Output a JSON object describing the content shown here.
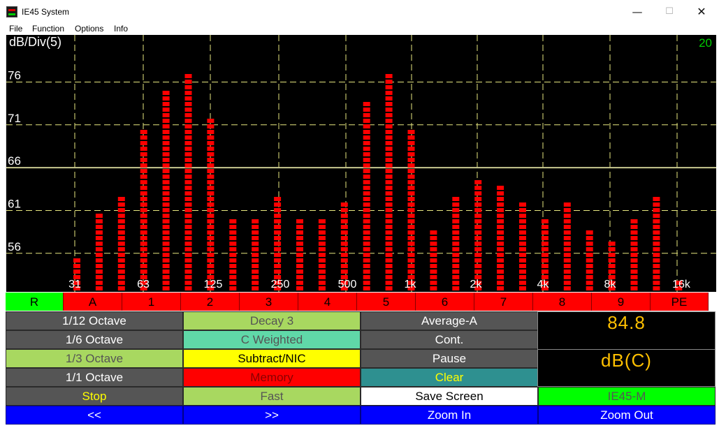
{
  "window": {
    "title": "IE45 System",
    "controls": {
      "minimize": "—",
      "maximize": "☐",
      "close": "✕"
    }
  },
  "menu": [
    {
      "label": "File"
    },
    {
      "label": "Function"
    },
    {
      "label": "Options"
    },
    {
      "label": "Info"
    }
  ],
  "chart_data": {
    "type": "bar",
    "ylabel": "dB/Div(5)",
    "range_indicator": "20",
    "ylim": [
      51.5,
      81.5
    ],
    "y_ticks": [
      56,
      61,
      66,
      71,
      76
    ],
    "reference_line": 66,
    "x_tick_labels": [
      "31",
      "63",
      "125",
      "250",
      "500",
      "1k",
      "2k",
      "4k",
      "8k",
      "16k"
    ],
    "values": [
      56,
      61,
      63,
      71,
      75,
      77,
      72,
      60,
      60,
      63,
      60,
      60,
      62,
      74,
      77,
      71,
      59,
      63,
      65,
      64,
      62,
      60,
      62,
      59,
      58,
      60,
      63,
      53,
      50
    ],
    "colors": {
      "bar": "#ff0000",
      "grid": "#e8e880",
      "reference_line": "#c8c890",
      "background": "#000000",
      "range_text": "#00cc00"
    }
  },
  "selector": {
    "buttons": [
      {
        "label": "R",
        "active": true
      },
      {
        "label": "A"
      },
      {
        "label": "1"
      },
      {
        "label": "2"
      },
      {
        "label": "3"
      },
      {
        "label": "4"
      },
      {
        "label": "5"
      },
      {
        "label": "6"
      },
      {
        "label": "7"
      },
      {
        "label": "8"
      },
      {
        "label": "9"
      },
      {
        "label": "PE"
      }
    ]
  },
  "controls": {
    "col1": [
      "1/12 Octave",
      "1/6 Octave",
      "1/3 Octave",
      "1/1 Octave",
      "Stop"
    ],
    "col2": [
      "Decay 3",
      "C Weighted",
      "Subtract/NIC",
      "Memory",
      "Fast"
    ],
    "col3": [
      "Average-A",
      "Cont.",
      "Pause",
      "Clear",
      "Save Screen"
    ],
    "col4_button": "IE45-M"
  },
  "readout": {
    "value": "84.8",
    "unit": "dB(C)"
  },
  "nav": [
    "<<",
    ">>",
    "Zoom In",
    "Zoom Out"
  ]
}
